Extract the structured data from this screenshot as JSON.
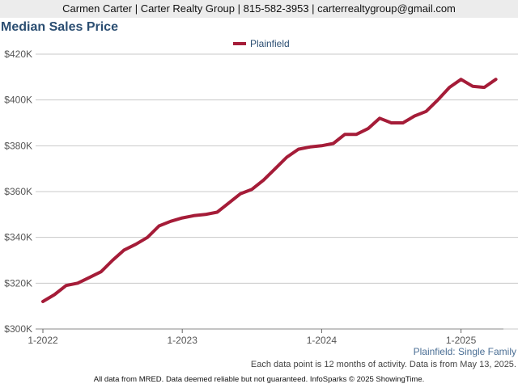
{
  "header": {
    "contact": "Carmen Carter | Carter Realty Group | 815-582-3953 | carterrealtygroup@gmail.com"
  },
  "subtitle": "Plainfield: Single Family",
  "note": "Each data point is 12 months of activity. Data is from May 13, 2025.",
  "footer": "All data from MRED. Data deemed reliable but not guaranteed. InfoSparks © 2025 ShowingTime.",
  "colors": {
    "series": "#a51c38",
    "title": "#2b4e72",
    "grid": "#c8c8c8"
  },
  "chart_data": {
    "type": "line",
    "title": "Median Sales Price",
    "xlabel": "",
    "ylabel": "",
    "ylim": [
      300000,
      420000
    ],
    "yticks": [
      300000,
      320000,
      340000,
      360000,
      380000,
      400000,
      420000
    ],
    "ytick_labels": [
      "$300K",
      "$320K",
      "$340K",
      "$360K",
      "$380K",
      "$400K",
      "$420K"
    ],
    "xticks": [
      "2022-01",
      "2023-01",
      "2024-01",
      "2025-01"
    ],
    "xtick_labels": [
      "1-2022",
      "1-2023",
      "1-2024",
      "1-2025"
    ],
    "legend_position": "top-center",
    "grid": "horizontal",
    "series": [
      {
        "name": "Plainfield",
        "x": [
          "2022-01",
          "2022-02",
          "2022-03",
          "2022-04",
          "2022-05",
          "2022-06",
          "2022-07",
          "2022-08",
          "2022-09",
          "2022-10",
          "2022-11",
          "2022-12",
          "2023-01",
          "2023-02",
          "2023-03",
          "2023-04",
          "2023-05",
          "2023-06",
          "2023-07",
          "2023-08",
          "2023-09",
          "2023-10",
          "2023-11",
          "2023-12",
          "2024-01",
          "2024-02",
          "2024-03",
          "2024-04",
          "2024-05",
          "2024-06",
          "2024-07",
          "2024-08",
          "2024-09",
          "2024-10",
          "2024-11",
          "2024-12",
          "2025-01",
          "2025-02",
          "2025-03",
          "2025-04"
        ],
        "values": [
          312000,
          315000,
          319000,
          320000,
          322500,
          325000,
          330000,
          334500,
          337000,
          340000,
          345000,
          347000,
          348500,
          349500,
          350000,
          351000,
          355000,
          359000,
          361000,
          365000,
          370000,
          375000,
          378500,
          379500,
          380000,
          381000,
          385000,
          385000,
          387500,
          392000,
          390000,
          390000,
          393000,
          395000,
          400000,
          405500,
          409000,
          406000,
          405500,
          409000
        ]
      }
    ]
  }
}
